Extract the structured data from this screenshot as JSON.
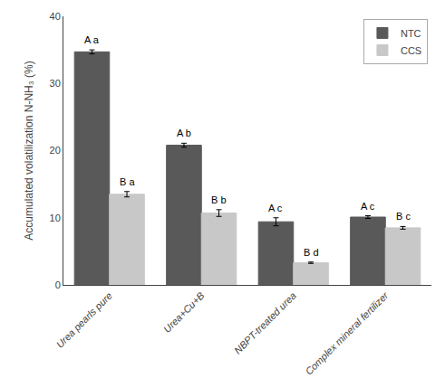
{
  "chart_data": {
    "type": "bar",
    "categories": [
      "Urea pearls pure",
      "Urea+Cu+B",
      "NBPT-treated urea",
      "Complex mineral fertilizer"
    ],
    "series": [
      {
        "name": "NTC",
        "color": "#595959",
        "values": [
          34.7,
          20.8,
          9.4,
          10.1
        ],
        "errors": [
          0.3,
          0.3,
          0.6,
          0.2
        ],
        "annotations": [
          "A a",
          "A b",
          "A c",
          "A c"
        ]
      },
      {
        "name": "CCS",
        "color": "#c8c8c8",
        "values": [
          13.5,
          10.7,
          3.3,
          8.5
        ],
        "errors": [
          0.4,
          0.5,
          0.1,
          0.2
        ],
        "annotations": [
          "B a",
          "B b",
          "B d",
          "B c"
        ]
      }
    ],
    "ylabel": "Accumulated volatilization N-NH₃ (%)",
    "ylim": [
      0,
      40
    ],
    "yticks": [
      0,
      10,
      20,
      30,
      40
    ],
    "legend": "upper right",
    "grid": false
  }
}
